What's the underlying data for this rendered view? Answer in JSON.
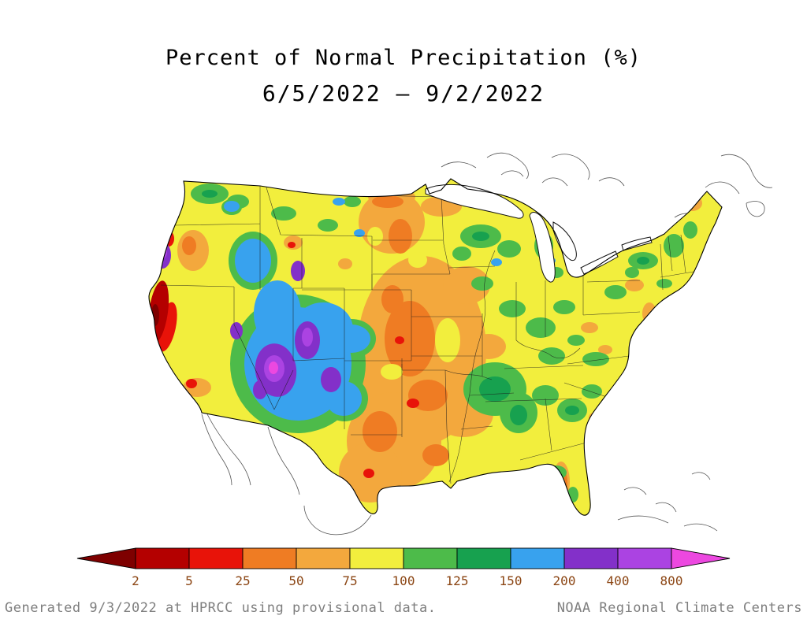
{
  "title": {
    "line1": "Percent of Normal Precipitation (%)",
    "line2": "6/5/2022 – 9/2/2022"
  },
  "colorbar": {
    "labels": [
      "2",
      "5",
      "25",
      "50",
      "75",
      "100",
      "125",
      "150",
      "200",
      "400",
      "800"
    ],
    "colors": [
      "#7e0000",
      "#b40000",
      "#e81309",
      "#ef7c23",
      "#f3a83d",
      "#f2ee3d",
      "#4dbb4a",
      "#17a14f",
      "#38a2ee",
      "#8330c9",
      "#ab43e2",
      "#ec48e0"
    ],
    "label_color": "#8b4513"
  },
  "map": {
    "base_color_index": 5
  },
  "footer": {
    "left": "Generated 9/3/2022 at HPRCC using provisional data.",
    "right": "NOAA Regional Climate Centers"
  }
}
